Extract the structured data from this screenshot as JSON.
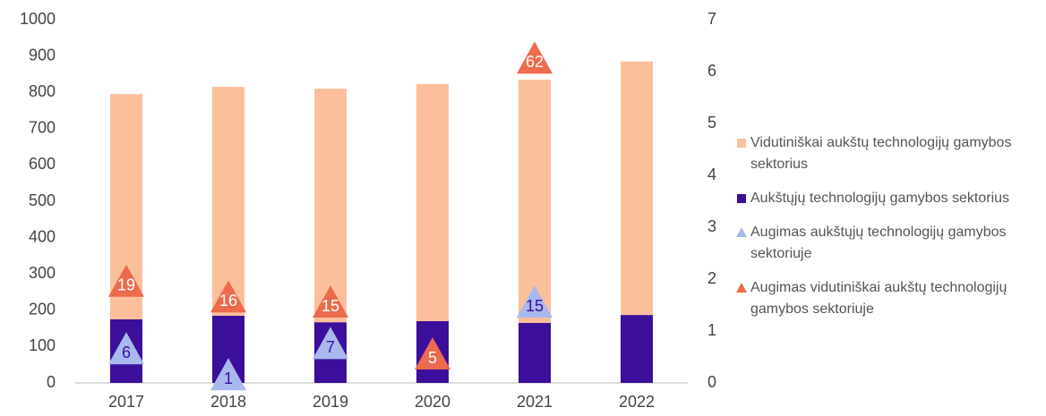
{
  "chart_data": {
    "type": "bar",
    "categories": [
      "2017",
      "2018",
      "2019",
      "2020",
      "2021",
      "2022"
    ],
    "series": [
      {
        "name": "Aukštųjų technologijų gamybos sektorius",
        "color": "#3b0f9a",
        "type": "bar",
        "values": [
          175,
          185,
          167,
          170,
          165,
          187
        ]
      },
      {
        "name": "Vidutiniškai aukštų technologijų gamybos sektorius",
        "color": "#fbbf9b",
        "type": "bar",
        "values": [
          620,
          630,
          643,
          653,
          670,
          698
        ]
      },
      {
        "name": "Augimas aukštųjų technologijų gamybos sektoriuje",
        "color": "#a9b8ef",
        "type": "marker",
        "axis": "y2",
        "values": [
          6,
          1,
          7,
          null,
          15,
          null
        ]
      },
      {
        "name": "Augimas vidutiniškai aukštų technologijų gamybos sektoriuje",
        "color": "#ec6b4d",
        "type": "marker",
        "axis": "y2",
        "values": [
          19,
          16,
          15,
          5,
          62,
          null
        ]
      }
    ],
    "legend_order": [
      1,
      0,
      2,
      3
    ],
    "ylim": [
      0,
      1000
    ],
    "yticks": [
      0,
      100,
      200,
      300,
      400,
      500,
      600,
      700,
      800,
      900,
      1000
    ],
    "y2lim": [
      0,
      70
    ],
    "y2ticks": [
      0,
      10,
      20,
      30,
      40,
      50,
      60,
      70
    ],
    "legend": "right"
  }
}
